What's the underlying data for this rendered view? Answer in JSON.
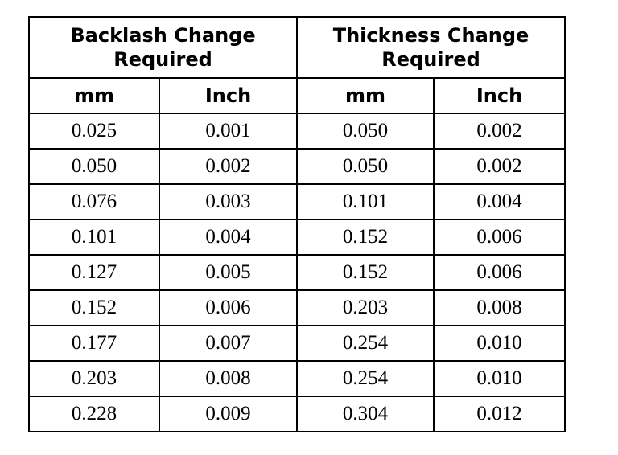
{
  "table": {
    "group_headers": [
      {
        "line1": "Backlash Change",
        "line2": "Required"
      },
      {
        "line1": "Thickness Change",
        "line2": "Required"
      }
    ],
    "unit_headers": [
      "mm",
      "Inch",
      "mm",
      "Inch"
    ],
    "rows": [
      [
        "0.025",
        "0.001",
        "0.050",
        "0.002"
      ],
      [
        "0.050",
        "0.002",
        "0.050",
        "0.002"
      ],
      [
        "0.076",
        "0.003",
        "0.101",
        "0.004"
      ],
      [
        "0.101",
        "0.004",
        "0.152",
        "0.006"
      ],
      [
        "0.127",
        "0.005",
        "0.152",
        "0.006"
      ],
      [
        "0.152",
        "0.006",
        "0.203",
        "0.008"
      ],
      [
        "0.177",
        "0.007",
        "0.254",
        "0.010"
      ],
      [
        "0.203",
        "0.008",
        "0.254",
        "0.010"
      ],
      [
        "0.228",
        "0.009",
        "0.304",
        "0.012"
      ]
    ]
  },
  "colors": {
    "border": "#000000",
    "text": "#000000",
    "background": "#ffffff"
  }
}
